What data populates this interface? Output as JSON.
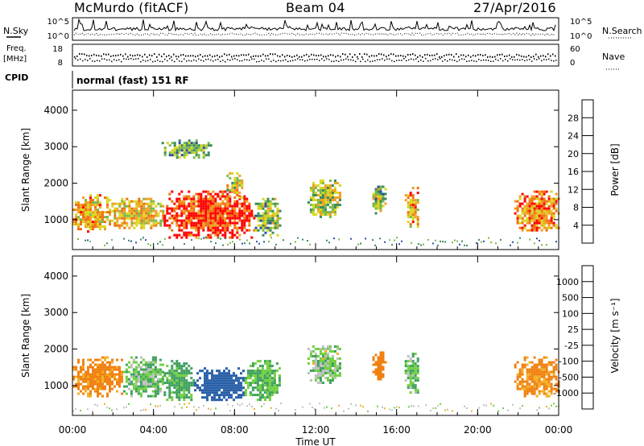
{
  "header": {
    "station": "McMurdo (fitACF)",
    "beam": "Beam 04",
    "date": "27/Apr/2016"
  },
  "top_panels": {
    "nsky_label": "N.Sky",
    "nsearch_label": "N.Search",
    "freq_label_line1": "Freq.",
    "freq_label_line2": "[MHz]",
    "nave_label": "Nave",
    "cpid_label": "CPID",
    "cpid_value": "normal (fast) 151 RF",
    "noise_left_ticks": [
      "10^5",
      "10^0"
    ],
    "noise_right_ticks": [
      "10^5",
      "10^0"
    ],
    "freq_ticks": [
      "18",
      "8"
    ],
    "nave_ticks": [
      "60",
      "0"
    ]
  },
  "colors": {
    "power_scale": [
      "#0000ff",
      "#2a4ea8",
      "#3a8a5c",
      "#7ab84a",
      "#d8d820",
      "#f0a020",
      "#f07010",
      "#ff0000"
    ],
    "velocity_scale": [
      "#2020c0",
      "#2a60a8",
      "#40a060",
      "#70d040",
      "#c0c0c0",
      "#f0b020",
      "#f08010",
      "#ff4000",
      "#ff0000"
    ]
  },
  "chart_data": [
    {
      "type": "heatmap",
      "name": "power-panel",
      "ylabel": "Slant Range [km]",
      "xlabel": "",
      "ylim": [
        180,
        4550
      ],
      "xlim": [
        0,
        24
      ],
      "yticks": [
        1000,
        2000,
        3000,
        4000
      ],
      "ytick_labels": [
        "1000",
        "2000",
        "3000",
        "4000"
      ],
      "colorbar": {
        "label": "Power [dB]",
        "ticks": [
          "4",
          "8",
          "12",
          "16",
          "20",
          "24",
          "28"
        ],
        "range": [
          0,
          32
        ]
      },
      "echo_regions": [
        {
          "t0": 0.0,
          "t1": 1.8,
          "r0": 700,
          "r1": 1700,
          "level": 22
        },
        {
          "t0": 1.8,
          "t1": 4.5,
          "r0": 800,
          "r1": 1600,
          "level": 20
        },
        {
          "t0": 4.5,
          "t1": 9.0,
          "r0": 500,
          "r1": 1800,
          "level": 29
        },
        {
          "t0": 9.0,
          "t1": 10.2,
          "r0": 600,
          "r1": 1600,
          "level": 14
        },
        {
          "t0": 4.4,
          "t1": 6.8,
          "r0": 2700,
          "r1": 3200,
          "level": 12
        },
        {
          "t0": 7.6,
          "t1": 8.4,
          "r0": 1600,
          "r1": 2300,
          "level": 18
        },
        {
          "t0": 11.6,
          "t1": 13.2,
          "r0": 1100,
          "r1": 2100,
          "level": 16
        },
        {
          "t0": 14.8,
          "t1": 15.4,
          "r0": 1200,
          "r1": 2000,
          "level": 14
        },
        {
          "t0": 16.4,
          "t1": 17.1,
          "r0": 800,
          "r1": 1900,
          "level": 22
        },
        {
          "t0": 21.8,
          "t1": 24.0,
          "r0": 700,
          "r1": 1800,
          "level": 24
        }
      ]
    },
    {
      "type": "heatmap",
      "name": "velocity-panel",
      "ylabel": "Slant Range [km]",
      "xlabel": "Time UT",
      "ylim": [
        180,
        4550
      ],
      "xlim": [
        0,
        24
      ],
      "yticks": [
        1000,
        2000,
        3000,
        4000
      ],
      "ytick_labels": [
        "1000",
        "2000",
        "3000",
        "4000"
      ],
      "xticks": [
        0,
        4,
        8,
        12,
        16,
        20,
        24
      ],
      "xtick_labels": [
        "00:00",
        "04:00",
        "08:00",
        "12:00",
        "16:00",
        "20:00",
        "00:00"
      ],
      "colorbar": {
        "label": "Velocity [m s⁻¹]",
        "ticks": [
          "1000",
          "500",
          "100",
          "25",
          "-25",
          "-100",
          "-500",
          "-1000"
        ],
        "range": [
          -1200,
          1200
        ]
      },
      "echo_regions": [
        {
          "t0": 0.0,
          "t1": 2.5,
          "r0": 700,
          "r1": 1800,
          "level": -150
        },
        {
          "t0": 2.5,
          "t1": 4.5,
          "r0": 700,
          "r1": 1800,
          "level": 80
        },
        {
          "t0": 4.5,
          "t1": 6.0,
          "r0": 600,
          "r1": 1700,
          "level": 150
        },
        {
          "t0": 6.0,
          "t1": 8.5,
          "r0": 600,
          "r1": 1500,
          "level": 600
        },
        {
          "t0": 8.5,
          "t1": 10.2,
          "r0": 600,
          "r1": 1700,
          "level": 120
        },
        {
          "t0": 11.6,
          "t1": 13.2,
          "r0": 1100,
          "r1": 2100,
          "level": 60
        },
        {
          "t0": 14.8,
          "t1": 15.4,
          "r0": 1200,
          "r1": 2000,
          "level": -200
        },
        {
          "t0": 16.4,
          "t1": 17.1,
          "r0": 800,
          "r1": 1900,
          "level": 80
        },
        {
          "t0": 21.8,
          "t1": 24.0,
          "r0": 700,
          "r1": 1800,
          "level": -150
        }
      ]
    }
  ]
}
